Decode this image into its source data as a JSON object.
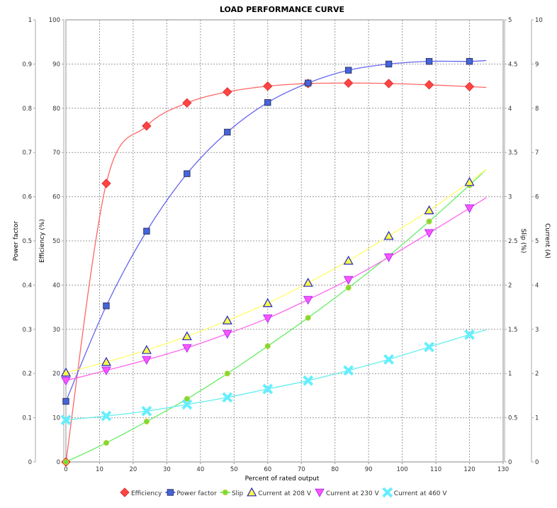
{
  "chart_data": {
    "type": "line",
    "title": "LOAD PERFORMANCE CURVE",
    "xlabel": "Percent of rated output",
    "xlim": [
      0,
      130
    ],
    "xticks": [
      0,
      10,
      20,
      30,
      40,
      50,
      60,
      70,
      80,
      90,
      100,
      110,
      120,
      130
    ],
    "axes": {
      "power_factor": {
        "label": "Power factor",
        "range": [
          0,
          1
        ],
        "ticks": [
          "0",
          "0.1",
          "0.2",
          "0.3",
          "0.4",
          "0.5",
          "0.6",
          "0.7",
          "0.8",
          "0.9",
          "1"
        ]
      },
      "efficiency": {
        "label": "Efficiency (%)",
        "range": [
          0,
          100
        ],
        "ticks": [
          "0",
          "10",
          "20",
          "30",
          "40",
          "50",
          "60",
          "70",
          "80",
          "90",
          "100"
        ]
      },
      "slip": {
        "label": "Slip (%)",
        "range": [
          0,
          5
        ],
        "ticks": [
          "0",
          "0.5",
          "1",
          "1.5",
          "2",
          "2.5",
          "3",
          "3.5",
          "4",
          "4.5",
          "5"
        ]
      },
      "current": {
        "label": "Current (A)",
        "range": [
          0,
          10
        ],
        "ticks": [
          "0",
          "1",
          "2",
          "3",
          "4",
          "5",
          "6",
          "7",
          "8",
          "9",
          "10"
        ]
      }
    },
    "grid": true,
    "legend_position": "bottom",
    "x": [
      0,
      12,
      24,
      36,
      48,
      60,
      72,
      84,
      96,
      108,
      120
    ],
    "series": [
      {
        "name": "Efficiency",
        "axis": "efficiency",
        "color": "#ff4444",
        "line": "#ff6666",
        "marker": "diamond",
        "values": [
          0,
          63,
          76,
          81.2,
          83.7,
          85,
          85.6,
          85.7,
          85.6,
          85.3,
          84.9
        ],
        "curve_end": 84.7
      },
      {
        "name": "Power factor",
        "axis": "power_factor",
        "color": "#4466dd",
        "line": "#6666ee",
        "marker": "square",
        "values": [
          0.137,
          0.353,
          0.522,
          0.652,
          0.746,
          0.813,
          0.857,
          0.886,
          0.9,
          0.906,
          0.906
        ],
        "curve_end": 0.908
      },
      {
        "name": "Slip",
        "axis": "slip",
        "color": "#77dd33",
        "line": "#66ee66",
        "marker": "circle",
        "values": [
          0,
          0.216,
          0.457,
          0.713,
          1.0,
          1.31,
          1.63,
          1.97,
          2.33,
          2.72,
          3.13
        ],
        "curve_end": 3.31
      },
      {
        "name": "Current at 208 V",
        "axis": "current",
        "color": "#ffff44",
        "line": "#ffff66",
        "marker": "triangle-up",
        "values": [
          2.02,
          2.26,
          2.53,
          2.84,
          3.2,
          3.59,
          4.05,
          4.55,
          5.11,
          5.69,
          6.33
        ],
        "curve_end": 6.62
      },
      {
        "name": "Current at 230 V",
        "axis": "current",
        "color": "#ff55ff",
        "line": "#ff66ee",
        "marker": "triangle-down",
        "values": [
          1.84,
          2.07,
          2.31,
          2.58,
          2.9,
          3.25,
          3.67,
          4.12,
          4.63,
          5.18,
          5.74
        ],
        "curve_end": 5.98
      },
      {
        "name": "Current at 460 V",
        "axis": "current",
        "color": "#66eeff",
        "line": "#66eeee",
        "marker": "x",
        "values": [
          0.95,
          1.04,
          1.15,
          1.3,
          1.46,
          1.65,
          1.84,
          2.07,
          2.32,
          2.6,
          2.88
        ],
        "curve_end": 2.99
      }
    ]
  }
}
